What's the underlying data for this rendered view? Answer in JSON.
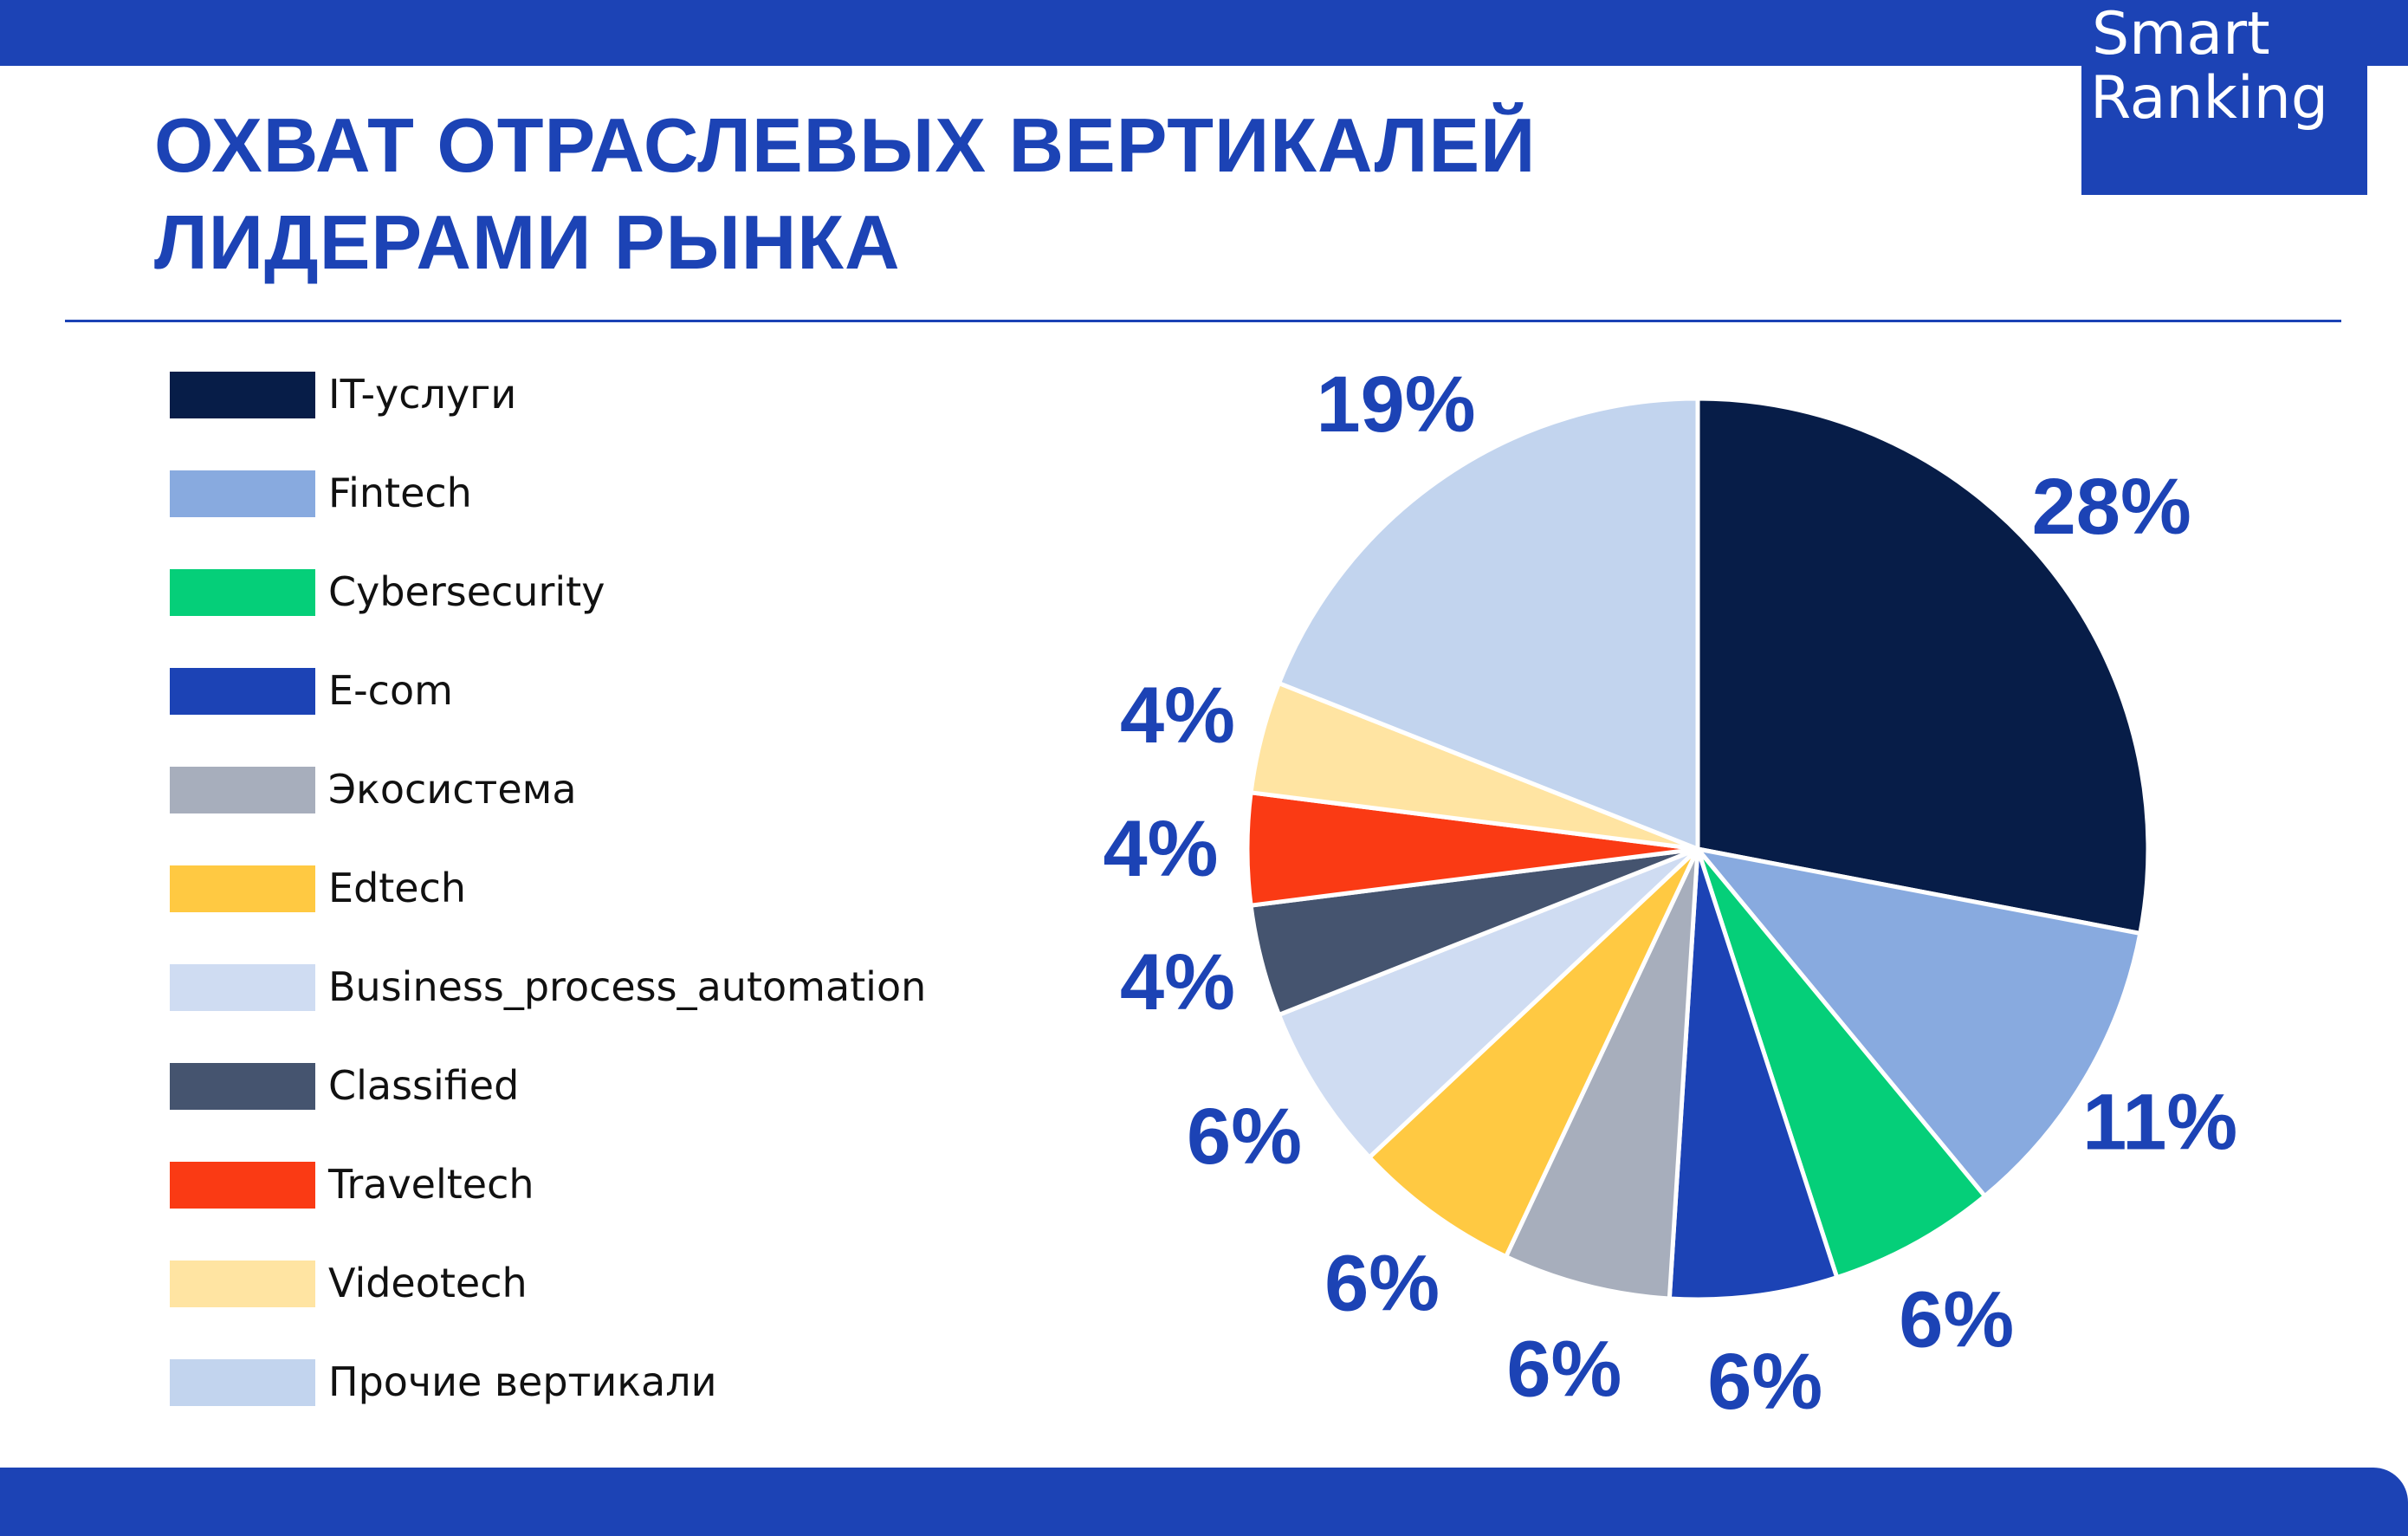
{
  "brand": {
    "logo_line1": "Smart",
    "logo_line2": "Ranking"
  },
  "header": {
    "title_line1": "ОХВАТ ОТРАСЛЕВЫХ ВЕРТИКАЛЕЙ",
    "title_line2": "ЛИДЕРАМИ РЫНКА"
  },
  "chart_data": {
    "type": "pie",
    "title": "ОХВАТ ОТРАСЛЕВЫХ ВЕРТИКАЛЕЙ ЛИДЕРАМИ РЫНКА",
    "legend_position": "left",
    "slices": [
      {
        "name": "IT-услуги",
        "value": 28,
        "label": "28%",
        "color": "#071d48"
      },
      {
        "name": "Fintech",
        "value": 11,
        "label": "11%",
        "color": "#88aadf"
      },
      {
        "name": "Cybersecurity",
        "value": 6,
        "label": "6%",
        "color": "#05cf79"
      },
      {
        "name": "E-com",
        "value": 6,
        "label": "6%",
        "color": "#1c43b5"
      },
      {
        "name": "Экосистема",
        "value": 6,
        "label": "6%",
        "color": "#a7aebc"
      },
      {
        "name": "Edtech",
        "value": 6,
        "label": "6%",
        "color": "#ffc942"
      },
      {
        "name": "Business_process_automation",
        "value": 6,
        "label": "6%",
        "color": "#cfdcf2"
      },
      {
        "name": "Classified",
        "value": 4,
        "label": "4%",
        "color": "#45546f"
      },
      {
        "name": "Traveltech",
        "value": 4,
        "label": "4%",
        "color": "#fa3a14"
      },
      {
        "name": "Videotech",
        "value": 4,
        "label": "4%",
        "color": "#ffe4a2"
      },
      {
        "name": "Прочие вертикали",
        "value": 19,
        "label": "19%",
        "color": "#c2d4ee"
      }
    ]
  }
}
